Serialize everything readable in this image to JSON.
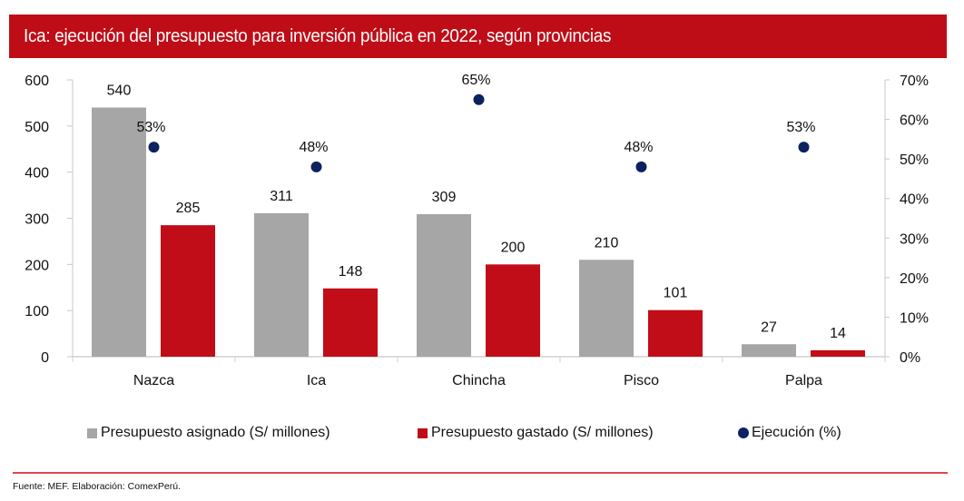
{
  "header": {
    "title": "Ica: ejecución del presupuesto para inversión pública en 2022, según provincias"
  },
  "colors": {
    "brand_red": "#bf0d17",
    "assigned_gray": "#a6a6a6",
    "spent_red": "#c00d17",
    "execution_navy": "#0c2160",
    "axis_gray": "#c8c8c8"
  },
  "chart_data": {
    "type": "bar",
    "title": "Ica: ejecución del presupuesto para inversión pública en 2022, según provincias",
    "categories": [
      "Nazca",
      "Ica",
      "Chincha",
      "Pisco",
      "Palpa"
    ],
    "series": [
      {
        "name": "Presupuesto asignado (S/ millones)",
        "type": "bar",
        "axis": "left",
        "values": [
          540,
          311,
          309,
          210,
          27
        ],
        "labels": [
          "540",
          "311",
          "309",
          "210",
          "27"
        ]
      },
      {
        "name": "Presupuesto gastado (S/ millones)",
        "type": "bar",
        "axis": "left",
        "values": [
          285,
          148,
          200,
          101,
          14
        ],
        "labels": [
          "285",
          "148",
          "200",
          "101",
          "14"
        ]
      },
      {
        "name": "Ejecución (%)",
        "type": "scatter",
        "axis": "right",
        "values": [
          53,
          48,
          65,
          48,
          53
        ],
        "labels": [
          "53%",
          "48%",
          "65%",
          "48%",
          "53%"
        ]
      }
    ],
    "left_axis": {
      "ylim": [
        0,
        600
      ],
      "ticks": [
        "0",
        "100",
        "200",
        "300",
        "400",
        "500",
        "600"
      ]
    },
    "right_axis": {
      "ylim": [
        0,
        70
      ],
      "ticks": [
        "0%",
        "10%",
        "20%",
        "30%",
        "40%",
        "50%",
        "60%",
        "70%"
      ]
    },
    "xlabel": "",
    "ylabel": "",
    "grid": false,
    "legend": "bottom"
  },
  "legend": {
    "items": [
      {
        "label": "Presupuesto asignado (S/ millones)",
        "shape": "square"
      },
      {
        "label": "Presupuesto gastado (S/ millones)",
        "shape": "square"
      },
      {
        "label": "Ejecución (%)",
        "shape": "circle"
      }
    ]
  },
  "footer": {
    "source": "Fuente: MEF. Elaboración: ComexPerú."
  }
}
